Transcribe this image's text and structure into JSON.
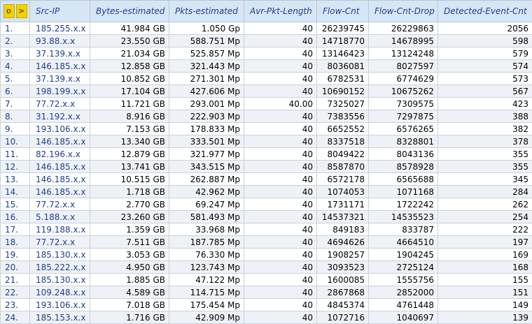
{
  "controls": {
    "o_label": "o",
    "sort_label": ">"
  },
  "columns": [
    "Src-IP",
    "Bytes-estimated",
    "Pkts-estimated",
    "Avr-Pkt-Length",
    "Flow-Cnt",
    "Flow-Cnt-Drop",
    "Detected-Event-Cnt"
  ],
  "rows": [
    [
      "1.",
      "185.255.x.x",
      "41.984 GB",
      "1.050 Gp",
      "40",
      "26239745",
      "26229863",
      "2056"
    ],
    [
      "2.",
      "93.88.x.x",
      "23.550 GB",
      "588.751 Mp",
      "40",
      "14718770",
      "14678995",
      "598"
    ],
    [
      "3.",
      "37.139.x.x",
      "21.034 GB",
      "525.857 Mp",
      "40",
      "13146423",
      "13124248",
      "579"
    ],
    [
      "4.",
      "146.185.x.x",
      "12.858 GB",
      "321.443 Mp",
      "40",
      "8036081",
      "8027597",
      "574"
    ],
    [
      "5.",
      "37.139.x.x",
      "10.852 GB",
      "271.301 Mp",
      "40",
      "6782531",
      "6774629",
      "573"
    ],
    [
      "6.",
      "198.199.x.x",
      "17.104 GB",
      "427.606 Mp",
      "40",
      "10690152",
      "10675262",
      "567"
    ],
    [
      "7.",
      "77.72.x.x",
      "11.721 GB",
      "293.001 Mp",
      "40.00",
      "7325027",
      "7309575",
      "423"
    ],
    [
      "8.",
      "31.192.x.x",
      "8.916 GB",
      "222.903 Mp",
      "40",
      "7383556",
      "7297875",
      "388"
    ],
    [
      "9.",
      "193.106.x.x",
      "7.153 GB",
      "178.833 Mp",
      "40",
      "6652552",
      "6576265",
      "382"
    ],
    [
      "10.",
      "146.185.x.x",
      "13.340 GB",
      "333.501 Mp",
      "40",
      "8337518",
      "8328801",
      "378"
    ],
    [
      "11.",
      "82.196.x.x",
      "12.879 GB",
      "321.977 Mp",
      "40",
      "8049422",
      "8043136",
      "355"
    ],
    [
      "12.",
      "146.185.x.x",
      "13.741 GB",
      "343.515 Mp",
      "40",
      "8587870",
      "8578928",
      "355"
    ],
    [
      "13.",
      "146.185.x.x",
      "10.515 GB",
      "262.887 Mp",
      "40",
      "6572178",
      "6565688",
      "345"
    ],
    [
      "14.",
      "146.185.x.x",
      "1.718 GB",
      "42.962 Mp",
      "40",
      "1074053",
      "1071168",
      "284"
    ],
    [
      "15.",
      "77.72.x.x",
      "2.770 GB",
      "69.247 Mp",
      "40",
      "1731171",
      "1722242",
      "262"
    ],
    [
      "16.",
      "5.188.x.x",
      "23.260 GB",
      "581.493 Mp",
      "40",
      "14537321",
      "14535523",
      "254"
    ],
    [
      "17.",
      "119.188.x.x",
      "1.359 GB",
      "33.968 Mp",
      "40",
      "849183",
      "833787",
      "222"
    ],
    [
      "18.",
      "77.72.x.x",
      "7.511 GB",
      "187.785 Mp",
      "40",
      "4694626",
      "4664510",
      "197"
    ],
    [
      "19.",
      "185.130.x.x",
      "3.053 GB",
      "76.330 Mp",
      "40",
      "1908257",
      "1904245",
      "169"
    ],
    [
      "20.",
      "185.222.x.x",
      "4.950 GB",
      "123.743 Mp",
      "40",
      "3093523",
      "2725124",
      "168"
    ],
    [
      "21.",
      "185.130.x.x",
      "1.885 GB",
      "47.122 Mp",
      "40",
      "1600085",
      "1555756",
      "155"
    ],
    [
      "22.",
      "109.248.x.x",
      "4.589 GB",
      "114.715 Mp",
      "40",
      "2867868",
      "2852000",
      "151"
    ],
    [
      "23.",
      "193.106.x.x",
      "7.018 GB",
      "175.454 Mp",
      "40",
      "4845374",
      "4761448",
      "149"
    ],
    [
      "24.",
      "185.153.x.x",
      "1.716 GB",
      "42.909 Mp",
      "40",
      "1072716",
      "1040697",
      "139"
    ]
  ]
}
